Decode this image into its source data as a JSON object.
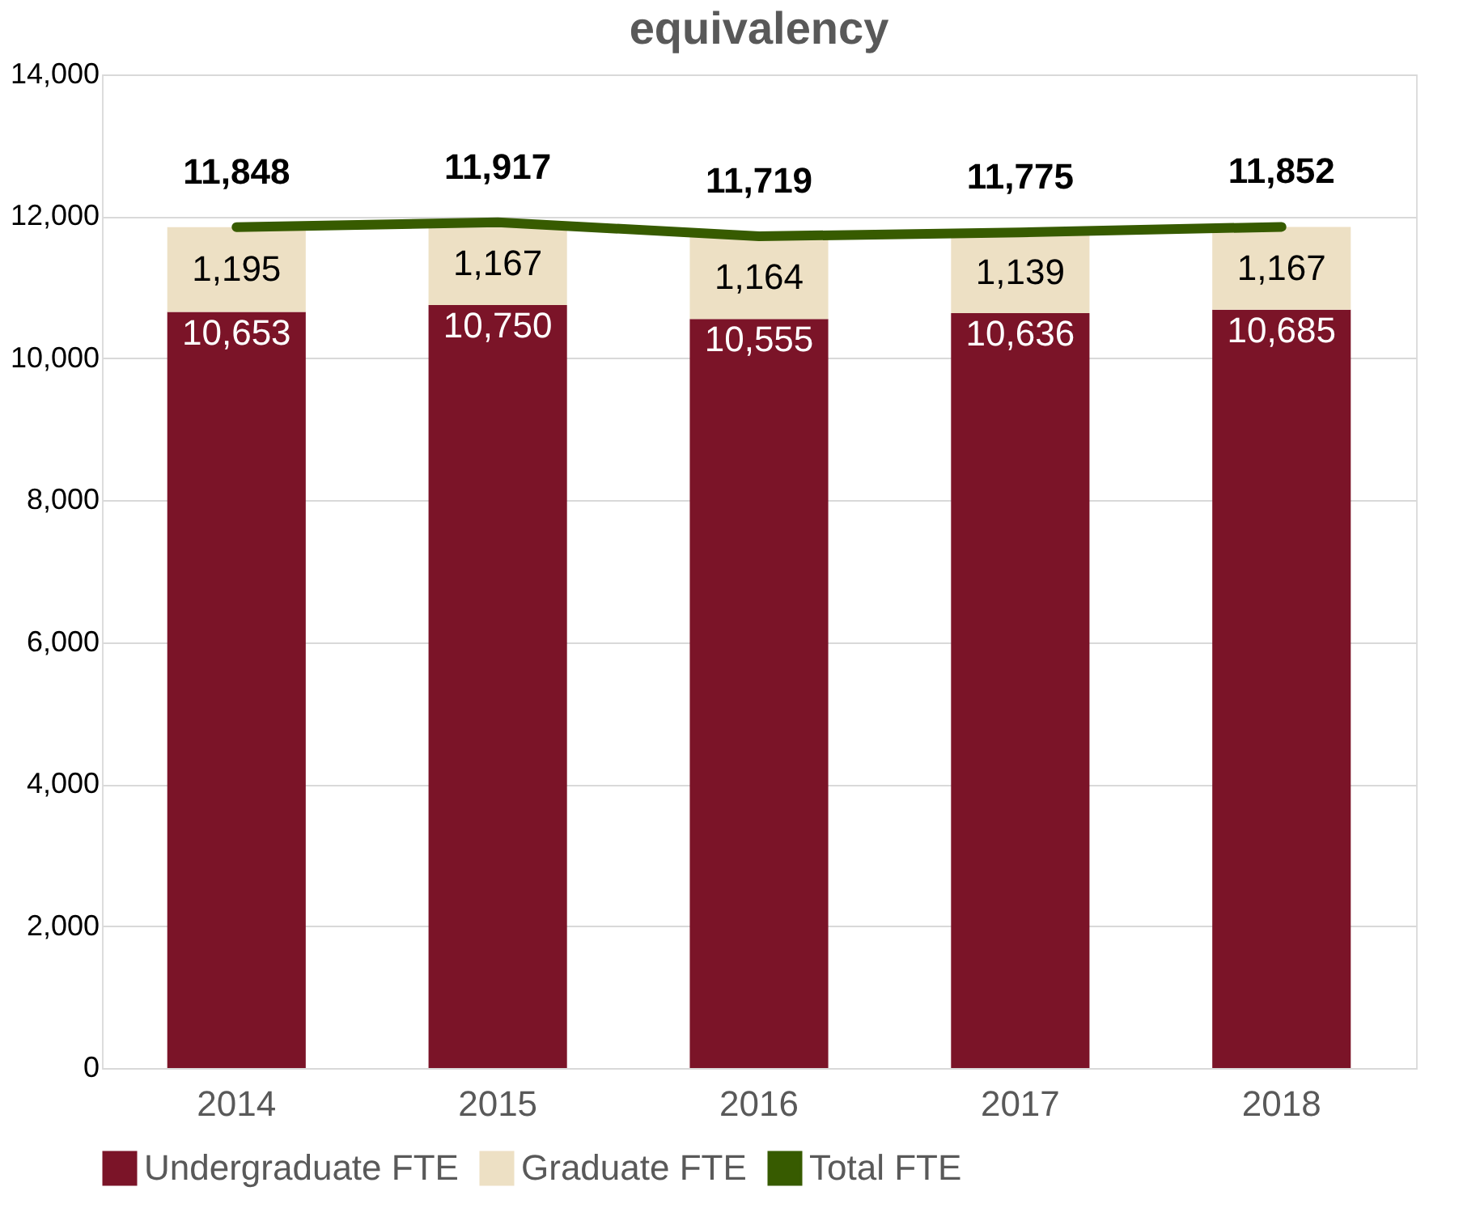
{
  "chart_data": {
    "type": "bar",
    "title": "equivalency",
    "stacked": true,
    "grid": "y",
    "legend": "bottom",
    "categories": [
      "2014",
      "2015",
      "2016",
      "2017",
      "2018"
    ],
    "ylim": [
      0,
      14000
    ],
    "yticks": [
      {
        "value": 0,
        "label": "0"
      },
      {
        "value": 2000,
        "label": "2,000"
      },
      {
        "value": 4000,
        "label": "4,000"
      },
      {
        "value": 6000,
        "label": "6,000"
      },
      {
        "value": 8000,
        "label": "8,000"
      },
      {
        "value": 10000,
        "label": "10,000"
      },
      {
        "value": 12000,
        "label": "12,000"
      },
      {
        "value": 14000,
        "label": "14,000"
      }
    ],
    "series": [
      {
        "name": "Undergraduate FTE",
        "color": "#7b1428",
        "values": [
          10653,
          10750,
          10555,
          10636,
          10685
        ],
        "value_labels": [
          "10,653",
          "10,750",
          "10,555",
          "10,636",
          "10,685"
        ]
      },
      {
        "name": "Graduate FTE",
        "color": "#ede0c4",
        "values": [
          1195,
          1167,
          1164,
          1139,
          1167
        ],
        "value_labels": [
          "1,195",
          "1,167",
          "1,164",
          "1,139",
          "1,167"
        ]
      },
      {
        "name": "Total FTE",
        "type": "line",
        "color": "#375b00",
        "values": [
          11848,
          11917,
          11719,
          11775,
          11852
        ],
        "value_labels": [
          "11,848",
          "11,917",
          "11,719",
          "11,775",
          "11,852"
        ]
      }
    ]
  }
}
